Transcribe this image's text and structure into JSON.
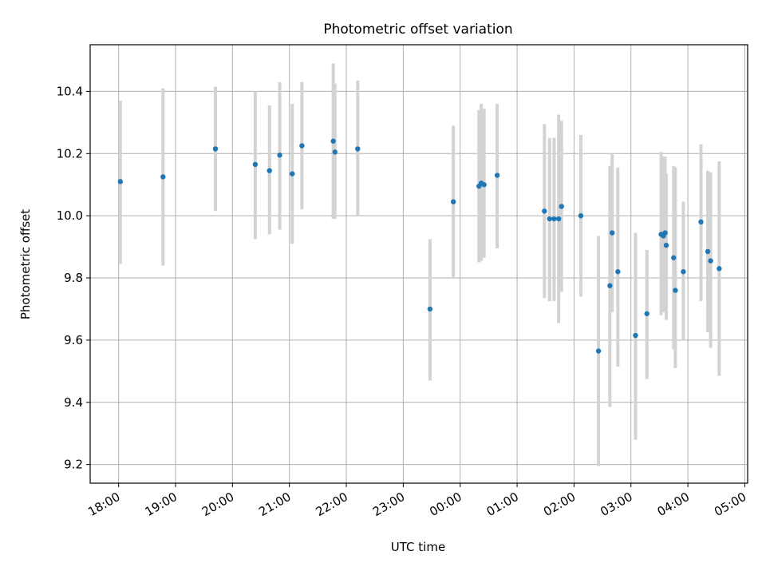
{
  "chart_data": {
    "type": "scatter",
    "title": "Photometric offset variation",
    "xlabel": "UTC time",
    "ylabel": "Photometric offset",
    "x_tick_labels": [
      "18:00",
      "19:00",
      "20:00",
      "21:00",
      "22:00",
      "23:00",
      "00:00",
      "01:00",
      "02:00",
      "03:00",
      "04:00",
      "05:00"
    ],
    "y_ticks": [
      9.2,
      9.4,
      9.6,
      9.8,
      10.0,
      10.2,
      10.4
    ],
    "y_tick_labels": [
      "9.2",
      "9.4",
      "9.6",
      "9.8",
      "10.0",
      "10.2",
      "10.4"
    ],
    "x_start_label": "18:00",
    "xlim_hours": [
      -0.5,
      11.05
    ],
    "ylim": [
      9.14,
      10.55
    ],
    "grid": true,
    "colors": {
      "point": "#1f77b4",
      "errorbar": "#d3d3d3",
      "grid": "#b0b0b0"
    },
    "series": [
      {
        "x_hours": [
          0.03,
          0.78,
          1.7,
          2.4,
          2.65,
          2.83,
          3.05,
          3.22,
          3.77,
          3.8,
          4.2,
          5.47,
          5.88,
          6.33,
          6.37,
          6.42,
          6.65,
          7.48,
          7.57,
          7.65,
          7.73,
          7.78,
          8.12,
          8.43,
          8.63,
          8.67,
          8.77,
          9.08,
          9.28,
          9.53,
          9.57,
          9.6,
          9.62,
          9.75,
          9.78,
          9.92,
          10.23,
          10.35,
          10.4,
          10.55
        ],
        "y": [
          10.11,
          10.125,
          10.215,
          10.165,
          10.145,
          10.195,
          10.135,
          10.225,
          10.24,
          10.205,
          10.215,
          9.7,
          10.045,
          10.095,
          10.105,
          10.1,
          10.13,
          10.015,
          9.99,
          9.99,
          9.99,
          10.03,
          10.0,
          9.565,
          9.775,
          9.945,
          9.82,
          9.615,
          9.685,
          9.94,
          9.935,
          9.945,
          9.905,
          9.865,
          9.76,
          9.82,
          9.98,
          9.885,
          9.855,
          9.83
        ],
        "yerr_low": [
          9.845,
          9.84,
          10.015,
          9.925,
          9.94,
          9.955,
          9.91,
          10.02,
          9.99,
          9.99,
          10.0,
          9.47,
          9.8,
          9.85,
          9.855,
          9.865,
          9.895,
          9.735,
          9.725,
          9.725,
          9.655,
          9.755,
          9.74,
          9.195,
          9.385,
          9.69,
          9.515,
          9.28,
          9.475,
          9.68,
          9.69,
          9.7,
          9.665,
          9.57,
          9.51,
          9.6,
          9.725,
          9.625,
          9.575,
          9.485
        ],
        "yerr_high": [
          10.37,
          10.41,
          10.415,
          10.4,
          10.355,
          10.43,
          10.36,
          10.43,
          10.49,
          10.425,
          10.435,
          9.925,
          10.29,
          10.34,
          10.36,
          10.345,
          10.36,
          10.295,
          10.25,
          10.25,
          10.325,
          10.305,
          10.26,
          9.935,
          10.16,
          10.2,
          10.155,
          9.945,
          9.89,
          10.205,
          10.19,
          10.19,
          10.135,
          10.16,
          10.155,
          10.045,
          10.23,
          10.145,
          10.14,
          10.175
        ]
      }
    ]
  }
}
